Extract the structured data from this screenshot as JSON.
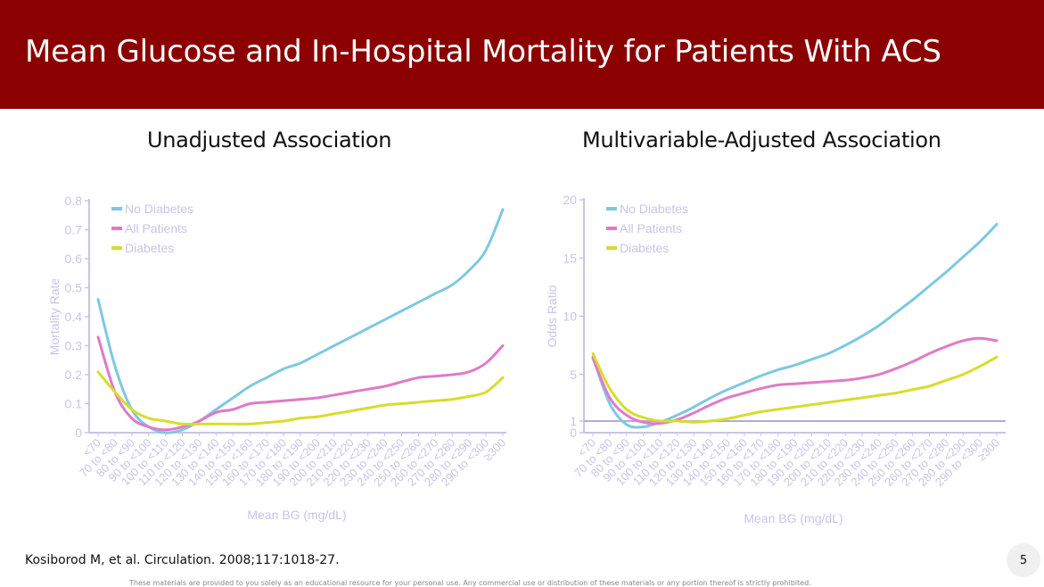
{
  "slide": {
    "title": "Mean Glucose and In-Hospital Mortality for Patients With ACS",
    "citation": "Kosiborod M, et al. Circulation. 2008;117:1018-27.",
    "page_number": "5",
    "disclaimer": "These materials are provided to you solely as an educational resource for your personal use. Any commercial use or distribution of these materials or any portion thereof is strictly prohibited.",
    "header_color": "#8b0000"
  },
  "colors": {
    "no_diabetes": "#7ec8e3",
    "all_patients": "#e07ac8",
    "diabetes": "#d8dc2c",
    "axis": "#c8c4e8",
    "axis_text": "#c8c4e8",
    "reference_line": "#b0acd8"
  },
  "chart_data": [
    {
      "type": "line",
      "panel_title": "Unadjusted Association",
      "xlabel": "Mean BG (mg/dL)",
      "ylabel": "Mortality Rate",
      "ylim": [
        0,
        0.8
      ],
      "yticks": [
        "0",
        "0.1",
        "0.2",
        "0.3",
        "0.4",
        "0.5",
        "0.6",
        "0.7",
        "0.8"
      ],
      "legend_position": "top-left",
      "categories": [
        "<70",
        "70 to <80",
        "80 to <90",
        "90 to <100",
        "100 to <110",
        "110 to <120",
        "120 to <130",
        "130 to <140",
        "140 to <150",
        "150 to <160",
        "160 to <170",
        "170 to <180",
        "180 to <190",
        "190 to <200",
        "200 to <210",
        "210 to <220",
        "220 to <230",
        "230 to <240",
        "240 to <250",
        "250 to <260",
        "260 to <270",
        "270 to <280",
        "280 to <290",
        "290 to <300",
        "≥300"
      ],
      "series": [
        {
          "name": "No Diabetes",
          "color": "#7ec8e3",
          "values": [
            0.46,
            0.23,
            0.08,
            0.02,
            0.0,
            0.01,
            0.04,
            0.08,
            0.12,
            0.16,
            0.19,
            0.22,
            0.24,
            0.27,
            0.3,
            0.33,
            0.36,
            0.39,
            0.42,
            0.45,
            0.48,
            0.51,
            0.56,
            0.63,
            0.77
          ]
        },
        {
          "name": "All Patients",
          "color": "#e07ac8",
          "values": [
            0.33,
            0.14,
            0.05,
            0.02,
            0.01,
            0.02,
            0.04,
            0.07,
            0.08,
            0.1,
            0.105,
            0.11,
            0.115,
            0.12,
            0.13,
            0.14,
            0.15,
            0.16,
            0.175,
            0.19,
            0.195,
            0.2,
            0.21,
            0.24,
            0.3
          ]
        },
        {
          "name": "Diabetes",
          "color": "#d8dc2c",
          "values": [
            0.21,
            0.14,
            0.08,
            0.05,
            0.04,
            0.03,
            0.03,
            0.03,
            0.03,
            0.03,
            0.035,
            0.04,
            0.05,
            0.055,
            0.065,
            0.075,
            0.085,
            0.095,
            0.1,
            0.105,
            0.11,
            0.115,
            0.125,
            0.14,
            0.19
          ]
        }
      ]
    },
    {
      "type": "line",
      "panel_title": "Multivariable-Adjusted Association",
      "xlabel": "Mean BG (mg/dL)",
      "ylabel": "Odds Ratio",
      "ylim": [
        0,
        20
      ],
      "yticks": [
        "0",
        "1",
        "5",
        "10",
        "15",
        "20"
      ],
      "reference_line": 1,
      "legend_position": "top-left",
      "categories": [
        "<70",
        "70 to <80",
        "80 to <90",
        "90 to <100",
        "100 to <110",
        "110 to <120",
        "120 to <130",
        "130 to <140",
        "140 to <150",
        "150 to <160",
        "160 to <170",
        "170 to <180",
        "180 to <190",
        "190 to <200",
        "200 to <210",
        "210 to <220",
        "220 to <230",
        "230 to <240",
        "240 to <250",
        "250 to <260",
        "260 to <270",
        "270 to <280",
        "280 to <290",
        "290 to <300",
        "≥300"
      ],
      "series": [
        {
          "name": "No Diabetes",
          "color": "#7ec8e3",
          "values": [
            6.5,
            2.5,
            0.7,
            0.5,
            0.9,
            1.5,
            2.2,
            3.0,
            3.7,
            4.3,
            4.9,
            5.4,
            5.8,
            6.3,
            6.8,
            7.5,
            8.3,
            9.2,
            10.3,
            11.4,
            12.6,
            13.8,
            15.1,
            16.4,
            17.9
          ]
        },
        {
          "name": "All Patients",
          "color": "#e07ac8",
          "values": [
            6.4,
            3.0,
            1.5,
            0.9,
            0.8,
            1.1,
            1.7,
            2.4,
            3.0,
            3.4,
            3.8,
            4.1,
            4.2,
            4.3,
            4.4,
            4.5,
            4.7,
            5.0,
            5.5,
            6.1,
            6.8,
            7.4,
            7.9,
            8.1,
            7.9
          ]
        },
        {
          "name": "Diabetes",
          "color": "#d8dc2c",
          "values": [
            6.8,
            3.8,
            2.0,
            1.3,
            1.0,
            1.0,
            0.9,
            1.0,
            1.2,
            1.5,
            1.8,
            2.0,
            2.2,
            2.4,
            2.6,
            2.8,
            3.0,
            3.2,
            3.4,
            3.7,
            4.0,
            4.5,
            5.0,
            5.7,
            6.5
          ]
        }
      ]
    }
  ]
}
